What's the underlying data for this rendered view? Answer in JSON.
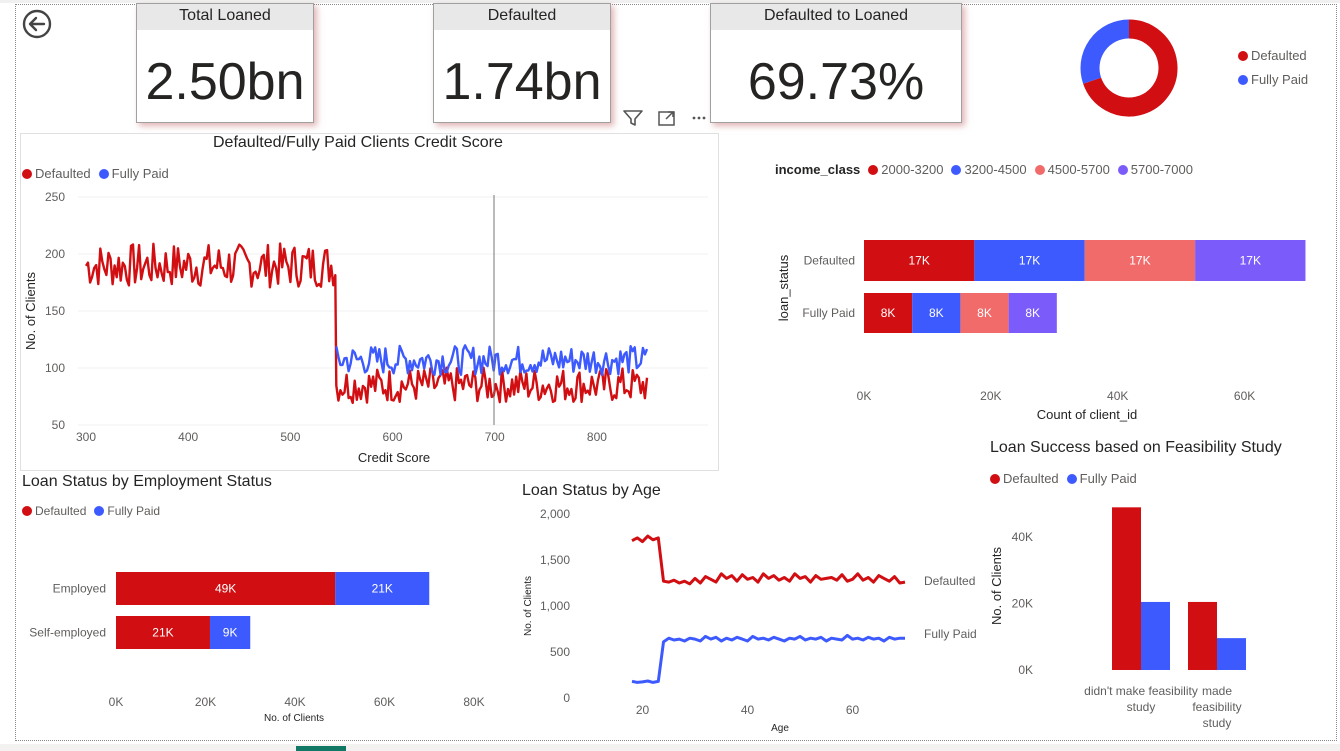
{
  "cards": [
    {
      "title": "Total Loaned",
      "value": "2.50bn"
    },
    {
      "title": "Defaulted",
      "value": "1.74bn"
    },
    {
      "title": "Defaulted to Loaned",
      "value": "69.73%"
    }
  ],
  "colors": {
    "defaulted": "#D10E12",
    "fully_paid": "#3D5AFE",
    "c3": "#F26B6B",
    "c4": "#7B5CFA"
  },
  "icons": {
    "back": "back-arrow-icon",
    "filter": "filter-icon",
    "focus": "focus-mode-icon",
    "more": "more-options-icon"
  },
  "donut": {
    "legend": [
      "Defaulted",
      "Fully Paid"
    ]
  },
  "chart_data": [
    {
      "type": "line",
      "title": "Defaulted/Fully Paid Clients Credit Score",
      "xlabel": "Credit Score",
      "ylabel": "No. of Clients",
      "xlim": [
        300,
        850
      ],
      "ylim": [
        50,
        250
      ],
      "xticks": [
        "300",
        "400",
        "500",
        "600",
        "700",
        "800"
      ],
      "yticks": [
        "50",
        "100",
        "150",
        "200",
        "250"
      ],
      "series": [
        {
          "name": "Defaulted",
          "segments": [
            {
              "x": [
                300,
                545
              ],
              "y_mean": 190,
              "y_noise": 15
            },
            {
              "x": [
                545,
                850
              ],
              "y_mean": 85,
              "y_noise": 12
            }
          ]
        },
        {
          "name": "Fully Paid",
          "segments": [
            {
              "x": [
                545,
                850
              ],
              "y_mean": 107,
              "y_noise": 10
            }
          ]
        }
      ]
    },
    {
      "type": "bar",
      "orientation": "horizontal-stacked",
      "legend_title": "income_class",
      "legend": [
        "2000-3200",
        "3200-4500",
        "4500-5700",
        "5700-7000"
      ],
      "categories": [
        "Defaulted",
        "Fully Paid"
      ],
      "ylabel": "loan_status",
      "xlabel": "Count of client_id",
      "xlim": [
        0,
        70000
      ],
      "xticks": [
        "0K",
        "20K",
        "40K",
        "60K"
      ],
      "series": [
        {
          "name": "2000-3200",
          "values": [
            17400,
            7600
          ],
          "labels": [
            "17K",
            "8K"
          ]
        },
        {
          "name": "3200-4500",
          "values": [
            17400,
            7600
          ],
          "labels": [
            "17K",
            "8K"
          ]
        },
        {
          "name": "4500-5700",
          "values": [
            17400,
            7600
          ],
          "labels": [
            "17K",
            "8K"
          ]
        },
        {
          "name": "5700-7000",
          "values": [
            17400,
            7600
          ],
          "labels": [
            "17K",
            "8K"
          ]
        }
      ]
    },
    {
      "type": "bar",
      "orientation": "horizontal-stacked",
      "title": "Loan Status by Employment Status",
      "legend": [
        "Defaulted",
        "Fully Paid"
      ],
      "categories": [
        "Employed",
        "Self-employed"
      ],
      "xlabel": "No. of Clients",
      "xlim": [
        0,
        80000
      ],
      "xticks": [
        "0K",
        "20K",
        "40K",
        "60K",
        "80K"
      ],
      "series": [
        {
          "name": "Defaulted",
          "values": [
            49000,
            21000
          ],
          "labels": [
            "49K",
            "21K"
          ]
        },
        {
          "name": "Fully Paid",
          "values": [
            21000,
            9000
          ],
          "labels": [
            "21K",
            "9K"
          ]
        }
      ]
    },
    {
      "type": "line",
      "title": "Loan Status by Age",
      "xlabel": "Age",
      "ylabel": "No. of Clients",
      "ylim": [
        0,
        2000
      ],
      "xticks": [
        "20",
        "40",
        "60"
      ],
      "yticks": [
        "0",
        "500",
        "1,000",
        "1,500",
        "2,000"
      ],
      "x": [
        18,
        19,
        20,
        21,
        22,
        23,
        24,
        25,
        26,
        27,
        28,
        29,
        30,
        31,
        32,
        33,
        34,
        35,
        36,
        37,
        38,
        39,
        40,
        41,
        42,
        43,
        44,
        45,
        46,
        47,
        48,
        49,
        50,
        51,
        52,
        53,
        54,
        55,
        56,
        57,
        58,
        59,
        60,
        61,
        62,
        63,
        64,
        65,
        66,
        67,
        68,
        69,
        70
      ],
      "series": [
        {
          "name": "Defaulted",
          "end_label": "Defaulted",
          "values": [
            1710,
            1740,
            1700,
            1760,
            1720,
            1740,
            1270,
            1260,
            1280,
            1250,
            1270,
            1240,
            1300,
            1250,
            1320,
            1290,
            1260,
            1350,
            1300,
            1330,
            1270,
            1340,
            1290,
            1310,
            1260,
            1350,
            1300,
            1330,
            1280,
            1310,
            1270,
            1350,
            1300,
            1320,
            1260,
            1330,
            1290,
            1300,
            1310,
            1280,
            1340,
            1270,
            1290,
            1350,
            1280,
            1310,
            1260,
            1330,
            1300,
            1270,
            1320,
            1250,
            1260
          ]
        },
        {
          "name": "Fully Paid",
          "end_label": "Fully Paid",
          "values": [
            180,
            170,
            175,
            185,
            170,
            180,
            610,
            650,
            630,
            640,
            620,
            650,
            640,
            620,
            670,
            640,
            660,
            620,
            650,
            630,
            660,
            640,
            620,
            670,
            640,
            650,
            630,
            660,
            640,
            620,
            650,
            640,
            670,
            630,
            650,
            640,
            660,
            620,
            650,
            640,
            630,
            680,
            640,
            650,
            630,
            660,
            640,
            650,
            620,
            660,
            640,
            650,
            650
          ]
        }
      ]
    },
    {
      "type": "bar",
      "orientation": "vertical-clustered",
      "title": "Loan Success based on Feasibility Study",
      "legend": [
        "Defaulted",
        "Fully Paid"
      ],
      "categories": [
        "didn't make feasibility study",
        "made feasibility study"
      ],
      "ylabel": "No. of Clients",
      "ylim": [
        0,
        50000
      ],
      "yticks": [
        "0K",
        "20K",
        "40K"
      ],
      "series": [
        {
          "name": "Defaulted",
          "values": [
            49000,
            20500
          ]
        },
        {
          "name": "Fully Paid",
          "values": [
            20500,
            9600
          ]
        }
      ]
    },
    {
      "type": "pie",
      "donut": true,
      "legend": [
        "Defaulted",
        "Fully Paid"
      ],
      "values": [
        69.73,
        30.27
      ]
    }
  ]
}
